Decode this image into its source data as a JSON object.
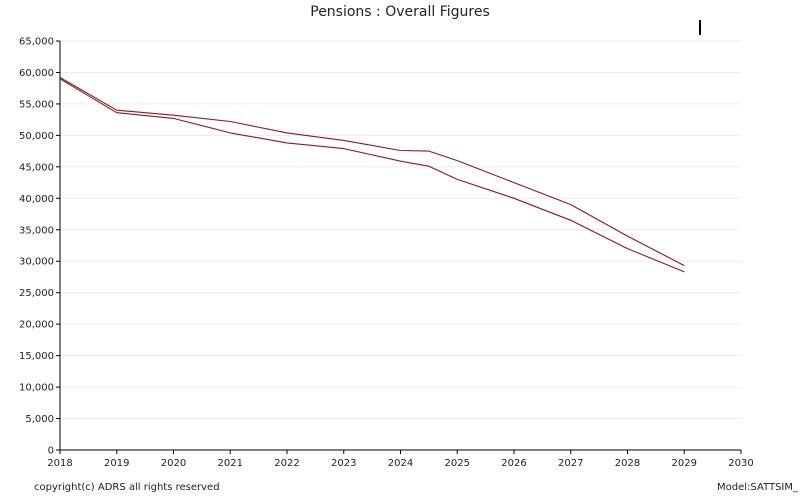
{
  "chart_data": {
    "type": "line",
    "title": "Pensions : Overall Figures",
    "xlabel": "",
    "ylabel": "",
    "xlim": [
      2018,
      2030
    ],
    "ylim": [
      0,
      65000
    ],
    "x_ticks": [
      "2018",
      "2019",
      "2020",
      "2021",
      "2022",
      "2023",
      "2024",
      "2025",
      "2026",
      "2027",
      "2028",
      "2029",
      "2030"
    ],
    "y_ticks": [
      "0",
      "5,000",
      "10,000",
      "15,000",
      "20,000",
      "25,000",
      "30,000",
      "35,000",
      "40,000",
      "45,000",
      "50,000",
      "55,000",
      "60,000",
      "65,000"
    ],
    "grid": true,
    "legend": "none",
    "series": [
      {
        "color": "#8b1a1a",
        "x": [
          2018,
          2019,
          2020,
          2021,
          2022,
          2023,
          2024,
          2024.5,
          2025,
          2026,
          2027,
          2028,
          2029
        ],
        "values": [
          59200,
          54000,
          53200,
          52200,
          50400,
          49200,
          47600,
          47500,
          46000,
          42500,
          39000,
          34000,
          29300
        ]
      },
      {
        "color": "#8b1a1a",
        "x": [
          2018,
          2019,
          2020,
          2021,
          2022,
          2023,
          2024,
          2024.5,
          2025,
          2026,
          2027,
          2028,
          2029
        ],
        "values": [
          59000,
          53600,
          52700,
          50400,
          48800,
          47900,
          45900,
          45100,
          43000,
          40000,
          36500,
          32000,
          28300
        ]
      }
    ]
  },
  "footer": {
    "copyright": "copyright(c) ADRS all rights reserved",
    "model": "Model:SATTSIM_"
  }
}
